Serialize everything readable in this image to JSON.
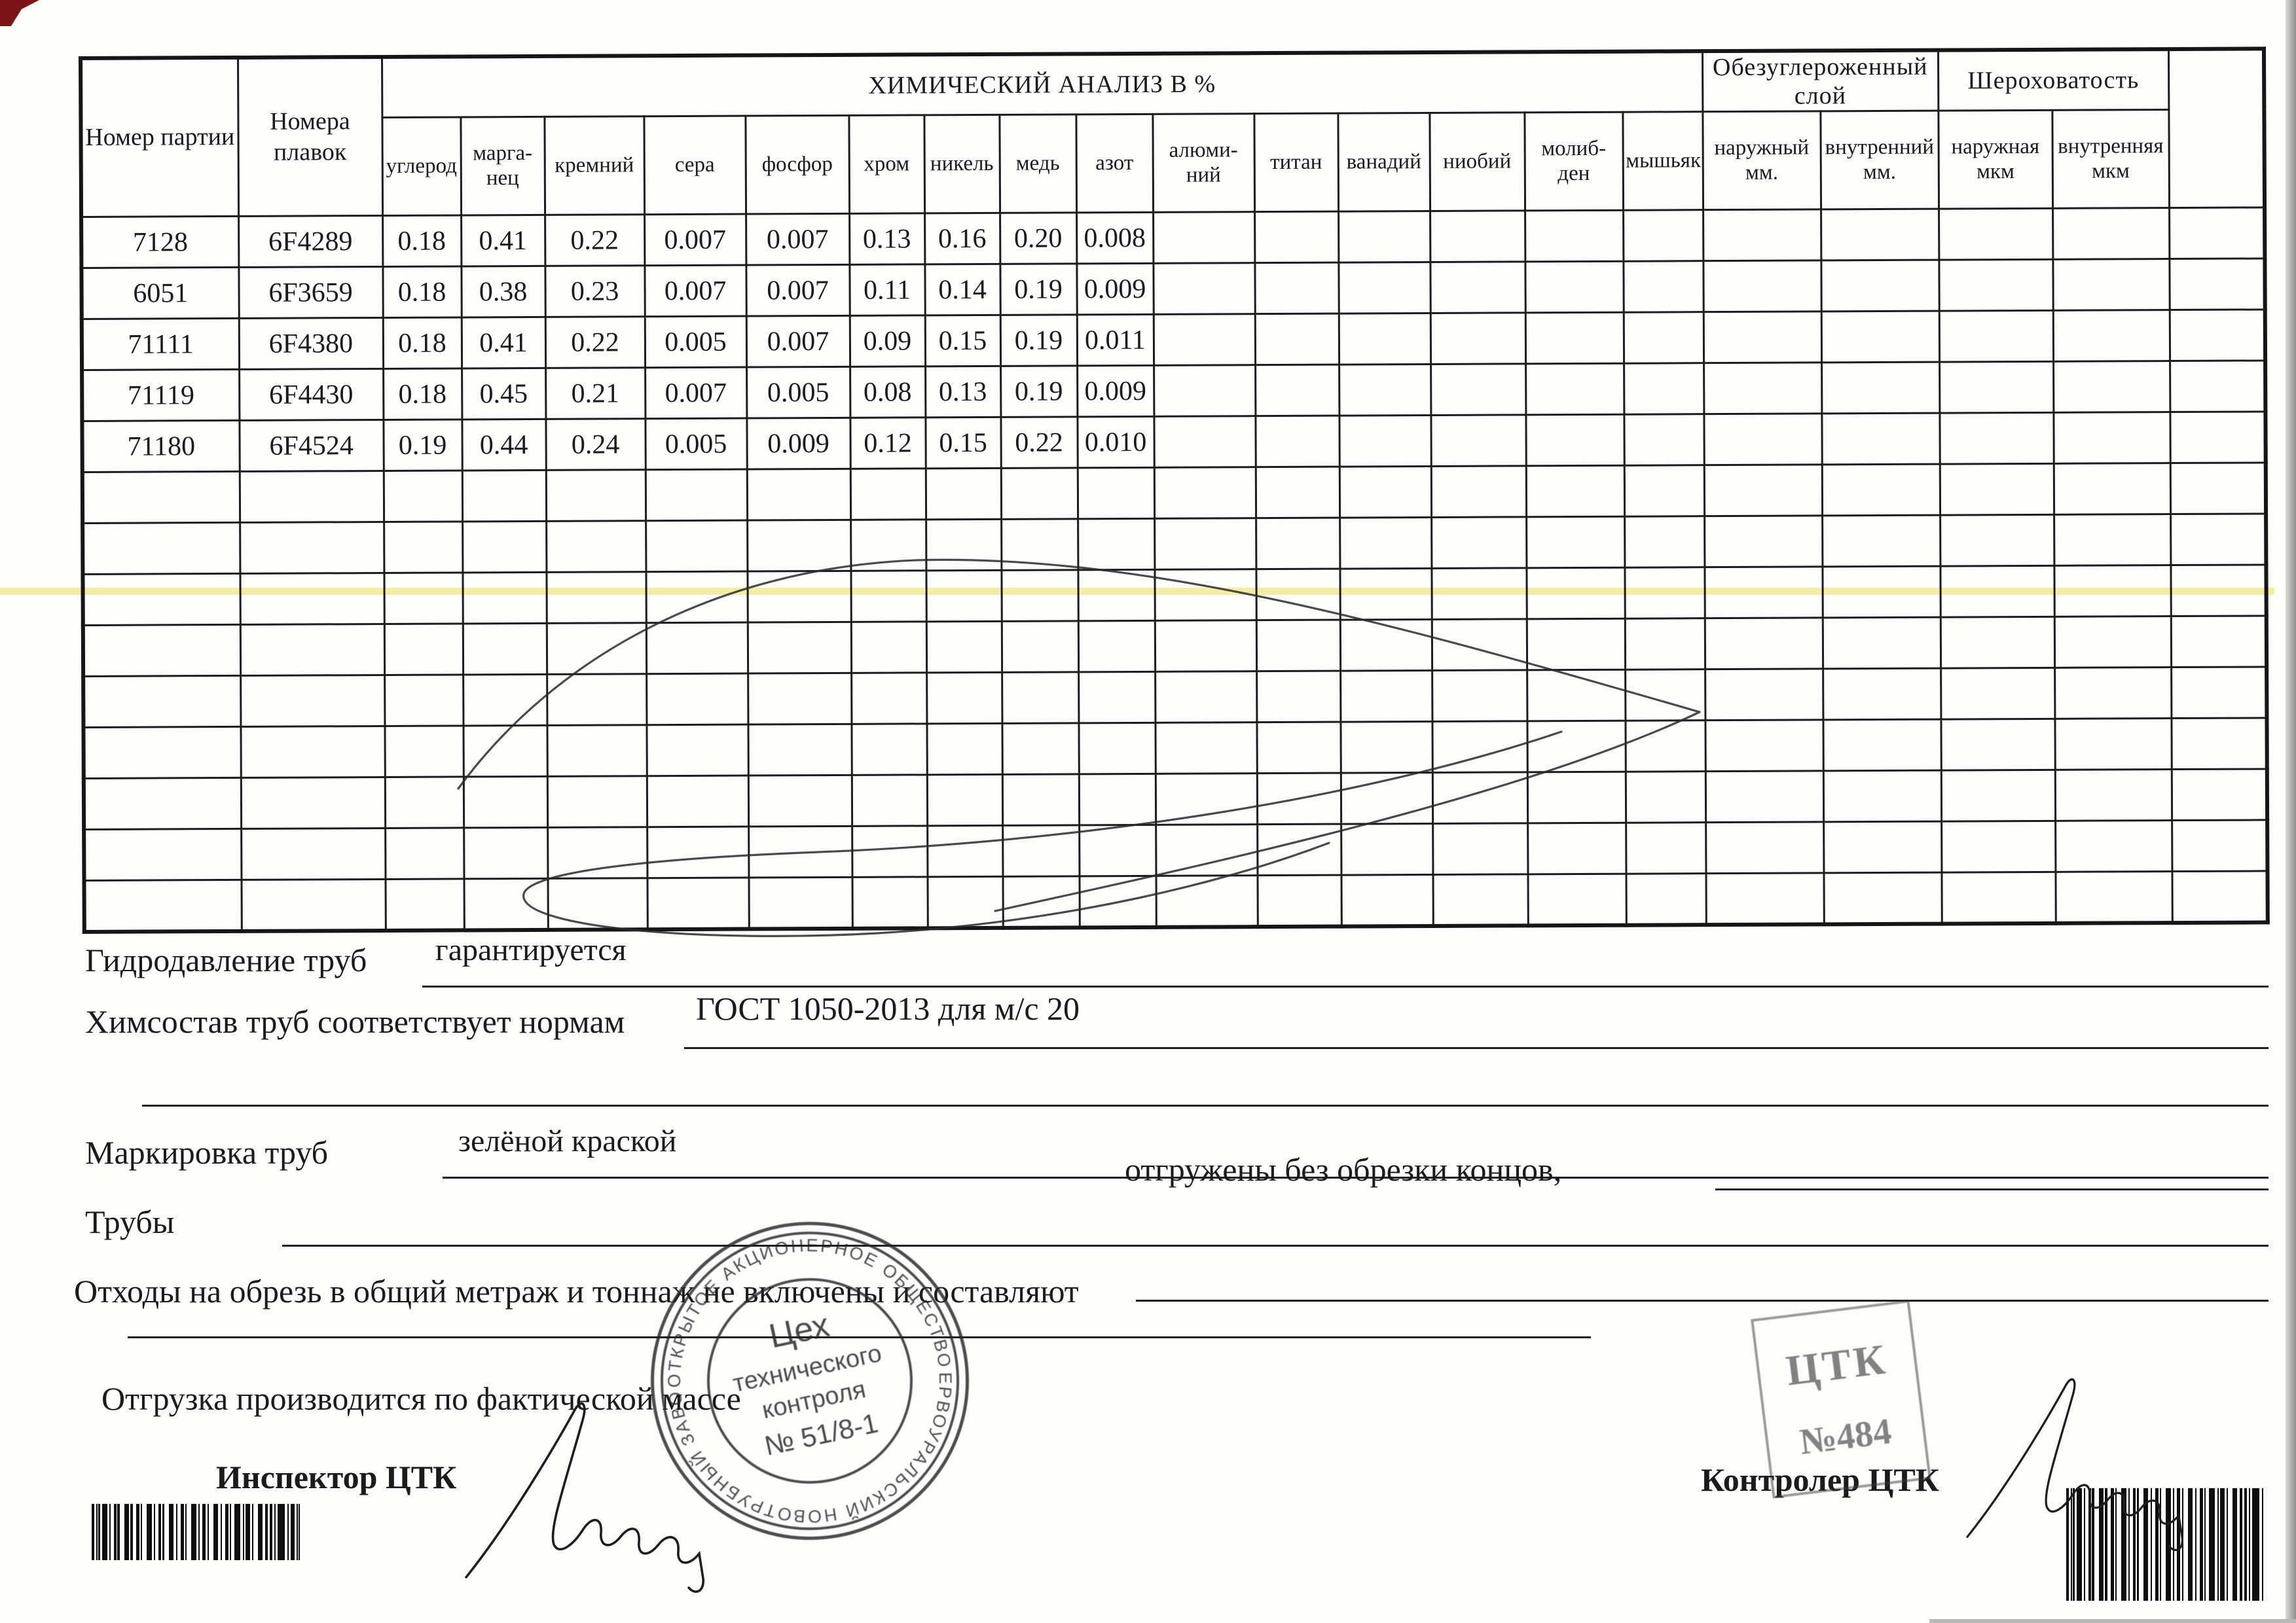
{
  "table": {
    "col_batch": "Номер партии",
    "col_melts": "Номера плавок",
    "group_chem": "ХИМИЧЕСКИЙ АНАЛИЗ  В   %",
    "group_decarb": "Обезуглероженный слой",
    "group_rough": "Шероховатость",
    "sub_headers": [
      "углерод",
      "марга-нец",
      "кремний",
      "сера",
      "фосфор",
      "хром",
      "никель",
      "медь",
      "азот",
      "алюми-ний",
      "титан",
      "ванадий",
      "ниобий",
      "молиб-ден",
      "мышьяк",
      "наружный мм.",
      "внутренний мм.",
      "наружная мкм",
      "внутренняя мкм"
    ],
    "rows": [
      [
        "7128",
        "6F4289",
        "0.18",
        "0.41",
        "0.22",
        "0.007",
        "0.007",
        "0.13",
        "0.16",
        "0.20",
        "0.008"
      ],
      [
        "6051",
        "6F3659",
        "0.18",
        "0.38",
        "0.23",
        "0.007",
        "0.007",
        "0.11",
        "0.14",
        "0.19",
        "0.009"
      ],
      [
        "71111",
        "6F4380",
        "0.18",
        "0.41",
        "0.22",
        "0.005",
        "0.007",
        "0.09",
        "0.15",
        "0.19",
        "0.011"
      ],
      [
        "71119",
        "6F4430",
        "0.18",
        "0.45",
        "0.21",
        "0.007",
        "0.005",
        "0.08",
        "0.13",
        "0.19",
        "0.009"
      ],
      [
        "71180",
        "6F4524",
        "0.19",
        "0.44",
        "0.24",
        "0.005",
        "0.009",
        "0.12",
        "0.15",
        "0.22",
        "0.010"
      ]
    ],
    "empty_row_count": 9,
    "column_count": 22
  },
  "fields": {
    "hydro_label": "Гидродавление труб",
    "hydro_value": "гарантируется",
    "chem_label": "Химсостав труб соответствует нормам",
    "chem_value": "ГОСТ 1050-2013 для м/с 20",
    "marking_label": "Маркировка труб",
    "marking_value": "зелёной краской",
    "pipes_label": "Трубы",
    "pipes_note": "отгружены без обрезки концов,",
    "waste_label": "Отходы на обрезь в общий метраж и тоннаж не включены и составляют",
    "shipping_note": "Отгрузка производится по фактической массе"
  },
  "signoff": {
    "inspector_label": "Инспектор ЦТК",
    "controller_label": "Контролер ЦТК"
  },
  "stamps": {
    "round_center_1": "Цех",
    "round_center_2": "технического",
    "round_center_3": "контроля",
    "round_center_4": "№ 51/8-1",
    "round_ring_top": "* ОТКРЫТОЕ АКЦИОНЕРНОЕ ОБЩЕСТВО *",
    "round_ring_bottom": "ПЕРВОУРАЛЬСКИЙ НОВОТРУБНЫЙ ЗАВОД",
    "rect_line1": "ЦТК",
    "rect_line2": "№484"
  },
  "colors": {
    "ink": "#1b1b1b",
    "stamp_ink": "#262626",
    "highlight": "#ece255",
    "corner_mark": "#7c1418"
  }
}
